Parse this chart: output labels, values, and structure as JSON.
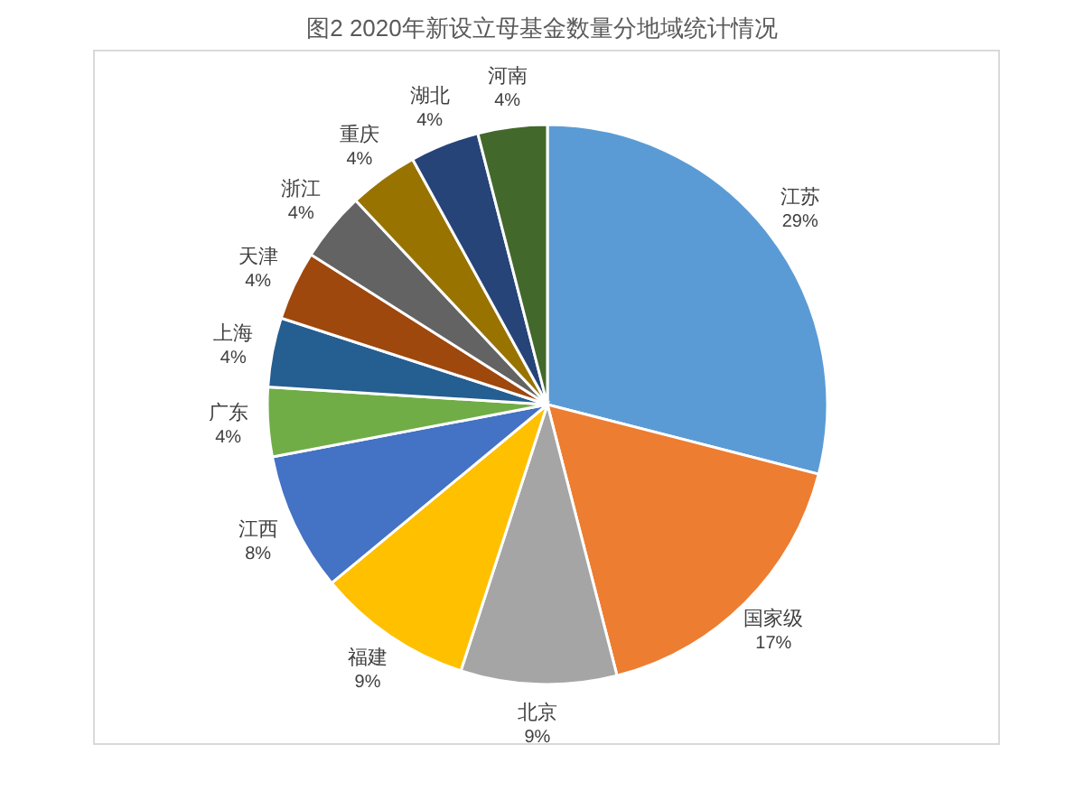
{
  "chart_data": {
    "type": "pie",
    "title": "图2 2020年新设立母基金数量分地域统计情况",
    "categories": [
      "江苏",
      "国家级",
      "北京",
      "福建",
      "江西",
      "广东",
      "上海",
      "天津",
      "浙江",
      "重庆",
      "湖北",
      "河南"
    ],
    "values": [
      29,
      17,
      9,
      9,
      8,
      4,
      4,
      4,
      4,
      4,
      4,
      4
    ],
    "value_labels": [
      "29%",
      "17%",
      "9%",
      "9%",
      "8%",
      "4%",
      "4%",
      "4%",
      "4%",
      "4%",
      "4%",
      "4%"
    ],
    "colors": [
      "#5b9bd5",
      "#ed7d31",
      "#a5a5a5",
      "#ffc000",
      "#4472c4",
      "#70ad47",
      "#255e91",
      "#9e480e",
      "#636363",
      "#997300",
      "#264478",
      "#43682b"
    ]
  }
}
